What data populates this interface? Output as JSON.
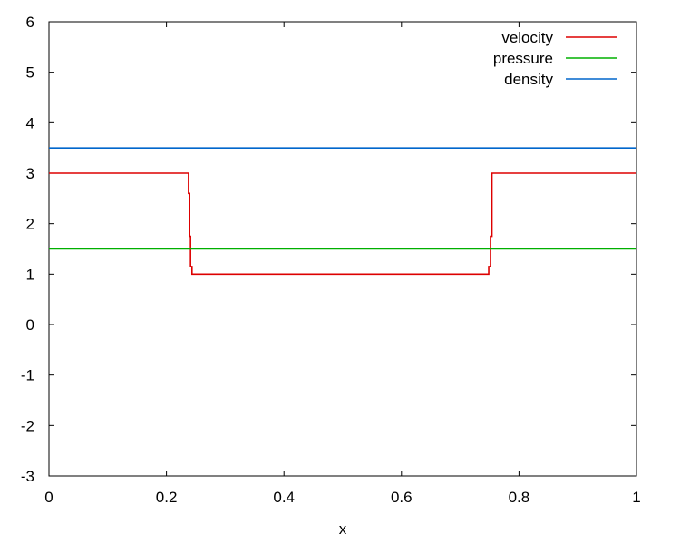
{
  "chart_data": {
    "type": "line",
    "title": "",
    "xlabel": "x",
    "ylabel": "",
    "xlim": [
      0,
      1
    ],
    "ylim": [
      -3,
      6
    ],
    "x_ticks": [
      "0",
      "0.2",
      "0.4",
      "0.6",
      "0.8",
      "1"
    ],
    "y_ticks": [
      "-3",
      "-2",
      "-1",
      "0",
      "1",
      "2",
      "3",
      "4",
      "5",
      "6"
    ],
    "grid": false,
    "legend_position": "top-right",
    "series": [
      {
        "name": "velocity",
        "color": "#dd0000",
        "x": [
          0,
          0.2375,
          0.2375,
          0.2395,
          0.2395,
          0.241,
          0.241,
          0.2435,
          0.2435,
          0.7485,
          0.7485,
          0.7515,
          0.7515,
          0.754,
          0.754,
          1
        ],
        "y": [
          3,
          3,
          2.6,
          2.6,
          1.75,
          1.75,
          1.15,
          1.15,
          1,
          1,
          1.15,
          1.15,
          1.75,
          1.75,
          3,
          3
        ]
      },
      {
        "name": "pressure",
        "color": "#00b000",
        "x": [
          0,
          1
        ],
        "y": [
          1.5,
          1.5
        ]
      },
      {
        "name": "density",
        "color": "#0066cc",
        "x": [
          0,
          1
        ],
        "y": [
          3.5,
          3.5
        ]
      }
    ]
  }
}
